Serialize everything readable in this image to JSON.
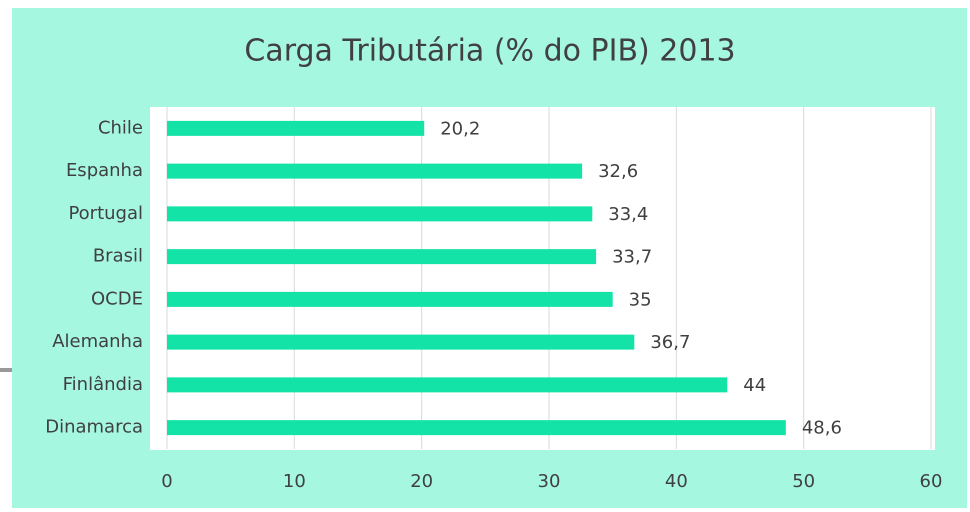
{
  "chart_data": {
    "type": "bar",
    "orientation": "horizontal",
    "title": "Carga Tributária (% do PIB) 2013",
    "categories": [
      "Chile",
      "Espanha",
      "Portugal",
      "Brasil",
      "OCDE",
      "Alemanha",
      "Finlândia",
      "Dinamarca"
    ],
    "values": [
      20.2,
      32.6,
      33.4,
      33.7,
      35,
      36.7,
      44,
      48.6
    ],
    "value_labels": [
      "20,2",
      "32,6",
      "33,4",
      "33,7",
      "35",
      "36,7",
      "44",
      "48,6"
    ],
    "color": "#14e3a8",
    "xlim": [
      0,
      60
    ],
    "xticks": [
      0,
      10,
      20,
      30,
      40,
      50,
      60
    ],
    "grid": true
  }
}
